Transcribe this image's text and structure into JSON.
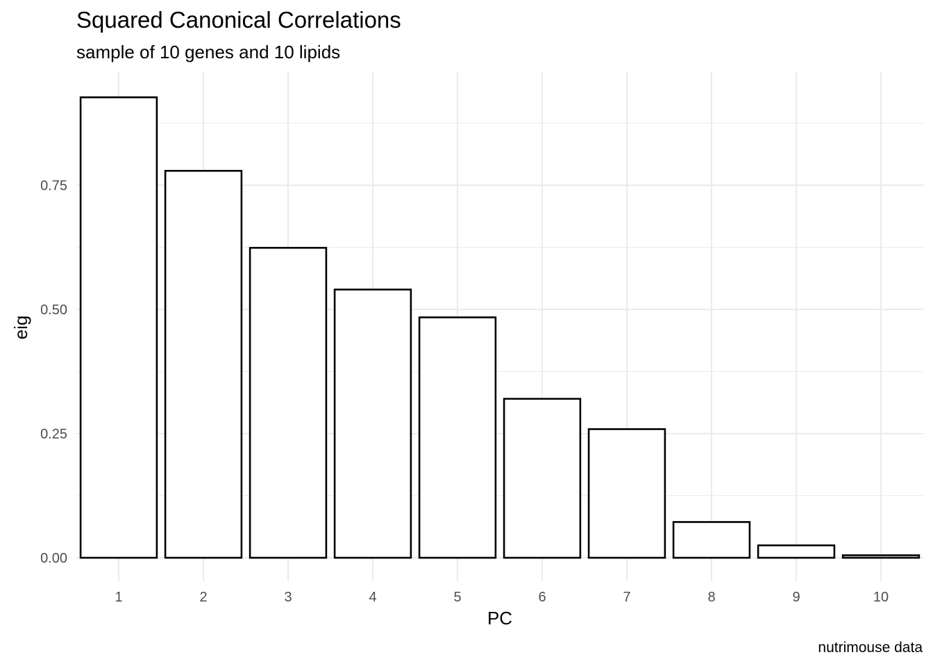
{
  "chart_data": {
    "type": "bar",
    "title": "Squared Canonical Correlations",
    "subtitle": "sample of 10 genes and 10 lipids",
    "caption": "nutrimouse data",
    "xlabel": "PC",
    "ylabel": "eig",
    "categories": [
      "1",
      "2",
      "3",
      "4",
      "5",
      "6",
      "7",
      "8",
      "9",
      "10"
    ],
    "values": [
      0.927,
      0.779,
      0.624,
      0.54,
      0.484,
      0.32,
      0.259,
      0.072,
      0.025,
      0.005
    ],
    "yticks": [
      0,
      0.25,
      0.5,
      0.75
    ],
    "ytick_labels": [
      "0.00",
      "0.25",
      "0.50",
      "0.75"
    ],
    "ylim": [
      0,
      0.97
    ],
    "grid": true,
    "bar_fill": "#ffffff",
    "bar_outline": "#000000",
    "grid_color": "#ebebeb"
  }
}
